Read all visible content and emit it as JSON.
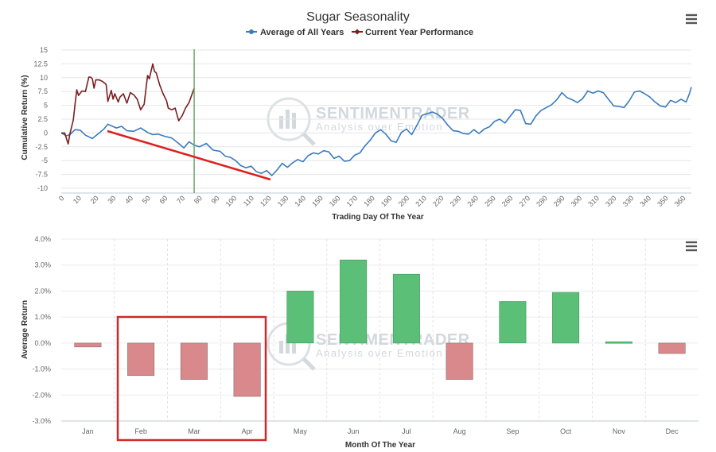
{
  "chart_data": [
    {
      "type": "line",
      "title": "Sugar Seasonality",
      "xlabel": "Trading Day Of The Year",
      "ylabel": "Cumulative Return (%)",
      "xlim": [
        0,
        365
      ],
      "ylim": [
        -10,
        15
      ],
      "x_ticks": [
        0,
        10,
        20,
        30,
        40,
        50,
        60,
        70,
        80,
        90,
        100,
        110,
        120,
        130,
        140,
        150,
        160,
        170,
        180,
        190,
        200,
        210,
        220,
        230,
        240,
        250,
        260,
        270,
        280,
        290,
        300,
        310,
        320,
        330,
        340,
        350,
        360
      ],
      "y_ticks": [
        -10,
        -7.5,
        -5,
        -2.5,
        0,
        2.5,
        5,
        7.5,
        10,
        12.5,
        15
      ],
      "legend": "top-center",
      "marker_day": 77,
      "series": [
        {
          "name": "Average of All Years",
          "color": "#3a7bc0",
          "points": [
            [
              0,
              0
            ],
            [
              3,
              -0.5
            ],
            [
              5,
              -0.3
            ],
            [
              8,
              0.6
            ],
            [
              11,
              0.5
            ],
            [
              14,
              -0.4
            ],
            [
              18,
              -1
            ],
            [
              22,
              0
            ],
            [
              25,
              0.8
            ],
            [
              27,
              1.6
            ],
            [
              29,
              1.3
            ],
            [
              32,
              0.9
            ],
            [
              35,
              1.2
            ],
            [
              38,
              0.4
            ],
            [
              42,
              0.3
            ],
            [
              46,
              0.9
            ],
            [
              50,
              0.1
            ],
            [
              53,
              -0.3
            ],
            [
              56,
              -0.2
            ],
            [
              60,
              -0.6
            ],
            [
              64,
              -0.9
            ],
            [
              66,
              -1.4
            ],
            [
              68,
              -1.9
            ],
            [
              71,
              -2.7
            ],
            [
              74,
              -1.6
            ],
            [
              77,
              -2.2
            ],
            [
              80,
              -2.5
            ],
            [
              84,
              -1.9
            ],
            [
              88,
              -3.1
            ],
            [
              92,
              -3.3
            ],
            [
              95,
              -4.2
            ],
            [
              98,
              -4.4
            ],
            [
              101,
              -5
            ],
            [
              104,
              -5.9
            ],
            [
              107,
              -6.3
            ],
            [
              110,
              -6
            ],
            [
              113,
              -7
            ],
            [
              116,
              -7.3
            ],
            [
              119,
              -6.8
            ],
            [
              122,
              -7.7
            ],
            [
              125,
              -6.7
            ],
            [
              128,
              -5.5
            ],
            [
              131,
              -6.2
            ],
            [
              134,
              -5.4
            ],
            [
              137,
              -4.8
            ],
            [
              140,
              -5.2
            ],
            [
              143,
              -4.1
            ],
            [
              146,
              -3.6
            ],
            [
              149,
              -3.8
            ],
            [
              152,
              -3.2
            ],
            [
              155,
              -3.4
            ],
            [
              158,
              -4.6
            ],
            [
              161,
              -4.2
            ],
            [
              164,
              -5.1
            ],
            [
              167,
              -5
            ],
            [
              170,
              -4
            ],
            [
              173,
              -3.6
            ],
            [
              176,
              -2.3
            ],
            [
              179,
              -1.3
            ],
            [
              182,
              0
            ],
            [
              185,
              0.6
            ],
            [
              188,
              -0.2
            ],
            [
              191,
              -1.4
            ],
            [
              194,
              -1.7
            ],
            [
              197,
              0.1
            ],
            [
              200,
              0.7
            ],
            [
              203,
              -0.3
            ],
            [
              206,
              1.4
            ],
            [
              209,
              3.2
            ],
            [
              212,
              3.5
            ],
            [
              215,
              3.8
            ],
            [
              218,
              3.4
            ],
            [
              221,
              2.6
            ],
            [
              224,
              1.4
            ],
            [
              227,
              0.4
            ],
            [
              230,
              0.3
            ],
            [
              233,
              -0.1
            ],
            [
              236,
              -0.2
            ],
            [
              239,
              0.6
            ],
            [
              242,
              -0.1
            ],
            [
              245,
              0.7
            ],
            [
              248,
              1.1
            ],
            [
              251,
              2.1
            ],
            [
              254,
              2.5
            ],
            [
              257,
              1.8
            ],
            [
              260,
              3
            ],
            [
              263,
              4.2
            ],
            [
              266,
              4.1
            ],
            [
              269,
              1.7
            ],
            [
              272,
              1.6
            ],
            [
              275,
              3.1
            ],
            [
              278,
              4.1
            ],
            [
              281,
              4.6
            ],
            [
              284,
              5.1
            ],
            [
              287,
              6
            ],
            [
              290,
              7.3
            ],
            [
              293,
              6.4
            ],
            [
              296,
              6
            ],
            [
              299,
              5.5
            ],
            [
              302,
              6.2
            ],
            [
              305,
              7.6
            ],
            [
              308,
              7.2
            ],
            [
              311,
              7.6
            ],
            [
              314,
              7.3
            ],
            [
              317,
              6.1
            ],
            [
              320,
              4.9
            ],
            [
              323,
              4.8
            ],
            [
              326,
              4.6
            ],
            [
              329,
              5.8
            ],
            [
              332,
              7.4
            ],
            [
              335,
              7.6
            ],
            [
              338,
              7.1
            ],
            [
              341,
              6.5
            ],
            [
              344,
              5.6
            ],
            [
              347,
              4.9
            ],
            [
              350,
              4.7
            ],
            [
              353,
              5.9
            ],
            [
              356,
              5.5
            ],
            [
              359,
              6.1
            ],
            [
              362,
              5.6
            ],
            [
              364,
              7.2
            ],
            [
              365,
              8.3
            ]
          ]
        },
        {
          "name": "Current Year Performance",
          "color": "#7a1e1e",
          "points": [
            [
              0,
              0
            ],
            [
              2,
              0
            ],
            [
              4,
              -2
            ],
            [
              5,
              -0.2
            ],
            [
              7,
              2.4
            ],
            [
              8,
              5.3
            ],
            [
              9,
              7.8
            ],
            [
              10,
              6.8
            ],
            [
              12,
              7.6
            ],
            [
              14,
              7.5
            ],
            [
              16,
              10.1
            ],
            [
              17,
              10.1
            ],
            [
              18,
              9.8
            ],
            [
              19,
              8.1
            ],
            [
              20,
              9.6
            ],
            [
              22,
              9.6
            ],
            [
              24,
              9.3
            ],
            [
              26,
              8.8
            ],
            [
              27,
              5.7
            ],
            [
              29,
              7.7
            ],
            [
              30,
              6.1
            ],
            [
              31,
              7.1
            ],
            [
              33,
              5.6
            ],
            [
              34,
              6.5
            ],
            [
              36,
              7.1
            ],
            [
              38,
              5.4
            ],
            [
              40,
              7.3
            ],
            [
              42,
              6.9
            ],
            [
              44,
              6.1
            ],
            [
              46,
              4.2
            ],
            [
              48,
              5.2
            ],
            [
              50,
              10.4
            ],
            [
              51,
              9.8
            ],
            [
              53,
              12.5
            ],
            [
              54,
              11.1
            ],
            [
              55,
              10.9
            ],
            [
              57,
              8.7
            ],
            [
              59,
              7.1
            ],
            [
              61,
              5.8
            ],
            [
              62,
              4.5
            ],
            [
              64,
              4.2
            ],
            [
              66,
              4.5
            ],
            [
              68,
              2.2
            ],
            [
              70,
              3.1
            ],
            [
              72,
              4.5
            ],
            [
              74,
              5.5
            ],
            [
              77,
              8.1
            ]
          ]
        }
      ]
    },
    {
      "type": "bar",
      "title": "",
      "xlabel": "Month Of The Year",
      "ylabel": "Average Return",
      "ylim": [
        -3,
        4
      ],
      "y_ticks": [
        "-3.0%",
        "-2.0%",
        "-1.0%",
        "0.0%",
        "1.0%",
        "2.0%",
        "3.0%",
        "4.0%"
      ],
      "categories": [
        "Jan",
        "Feb",
        "Mar",
        "Apr",
        "May",
        "Jun",
        "Jul",
        "Aug",
        "Sep",
        "Oct",
        "Nov",
        "Dec"
      ],
      "values": [
        -0.15,
        -1.25,
        -1.4,
        -2.05,
        2.0,
        3.2,
        2.65,
        -1.4,
        1.6,
        1.95,
        0.05,
        -0.4
      ],
      "positive_color": "#5bbf78",
      "negative_color": "#d9898b",
      "highlight_box_categories": [
        "Feb",
        "Mar",
        "Apr"
      ],
      "highlight_color": "#cc2a2a"
    }
  ],
  "watermark": {
    "name": "SENTIMENTRADER",
    "tagline": "Analysis over Emotion"
  }
}
